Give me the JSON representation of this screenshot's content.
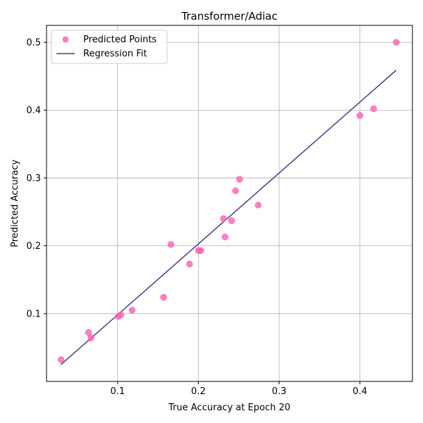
{
  "chart_data": {
    "type": "scatter",
    "title": "Transformer/Adiac",
    "xlabel": "True Accuracy at Epoch 20",
    "ylabel": "Predicted Accuracy",
    "xlim": [
      0.012,
      0.465
    ],
    "ylim": [
      0.0,
      0.525
    ],
    "xticks": [
      0.1,
      0.2,
      0.3,
      0.4
    ],
    "xtick_labels": [
      "0.1",
      "0.2",
      "0.3",
      "0.4"
    ],
    "yticks": [
      0.1,
      0.2,
      0.3,
      0.4,
      0.5
    ],
    "ytick_labels": [
      "0.1",
      "0.2",
      "0.3",
      "0.4",
      "0.5"
    ],
    "grid": true,
    "legend_position": "top-left",
    "series": [
      {
        "name": "Predicted Points",
        "kind": "scatter",
        "color": "#ff5fb0",
        "points": [
          {
            "x": 0.03,
            "y": 0.032
          },
          {
            "x": 0.064,
            "y": 0.072
          },
          {
            "x": 0.067,
            "y": 0.064
          },
          {
            "x": 0.101,
            "y": 0.096
          },
          {
            "x": 0.104,
            "y": 0.098
          },
          {
            "x": 0.118,
            "y": 0.105
          },
          {
            "x": 0.157,
            "y": 0.124
          },
          {
            "x": 0.166,
            "y": 0.202
          },
          {
            "x": 0.189,
            "y": 0.173
          },
          {
            "x": 0.2,
            "y": 0.193
          },
          {
            "x": 0.203,
            "y": 0.193
          },
          {
            "x": 0.231,
            "y": 0.24
          },
          {
            "x": 0.233,
            "y": 0.213
          },
          {
            "x": 0.241,
            "y": 0.237
          },
          {
            "x": 0.246,
            "y": 0.281
          },
          {
            "x": 0.251,
            "y": 0.298
          },
          {
            "x": 0.274,
            "y": 0.26
          },
          {
            "x": 0.4,
            "y": 0.392
          },
          {
            "x": 0.417,
            "y": 0.402
          },
          {
            "x": 0.445,
            "y": 0.5
          }
        ]
      },
      {
        "name": "Regression Fit",
        "kind": "line",
        "color": "#483d8b",
        "points": [
          {
            "x": 0.03,
            "y": 0.025
          },
          {
            "x": 0.445,
            "y": 0.459
          }
        ]
      }
    ]
  }
}
